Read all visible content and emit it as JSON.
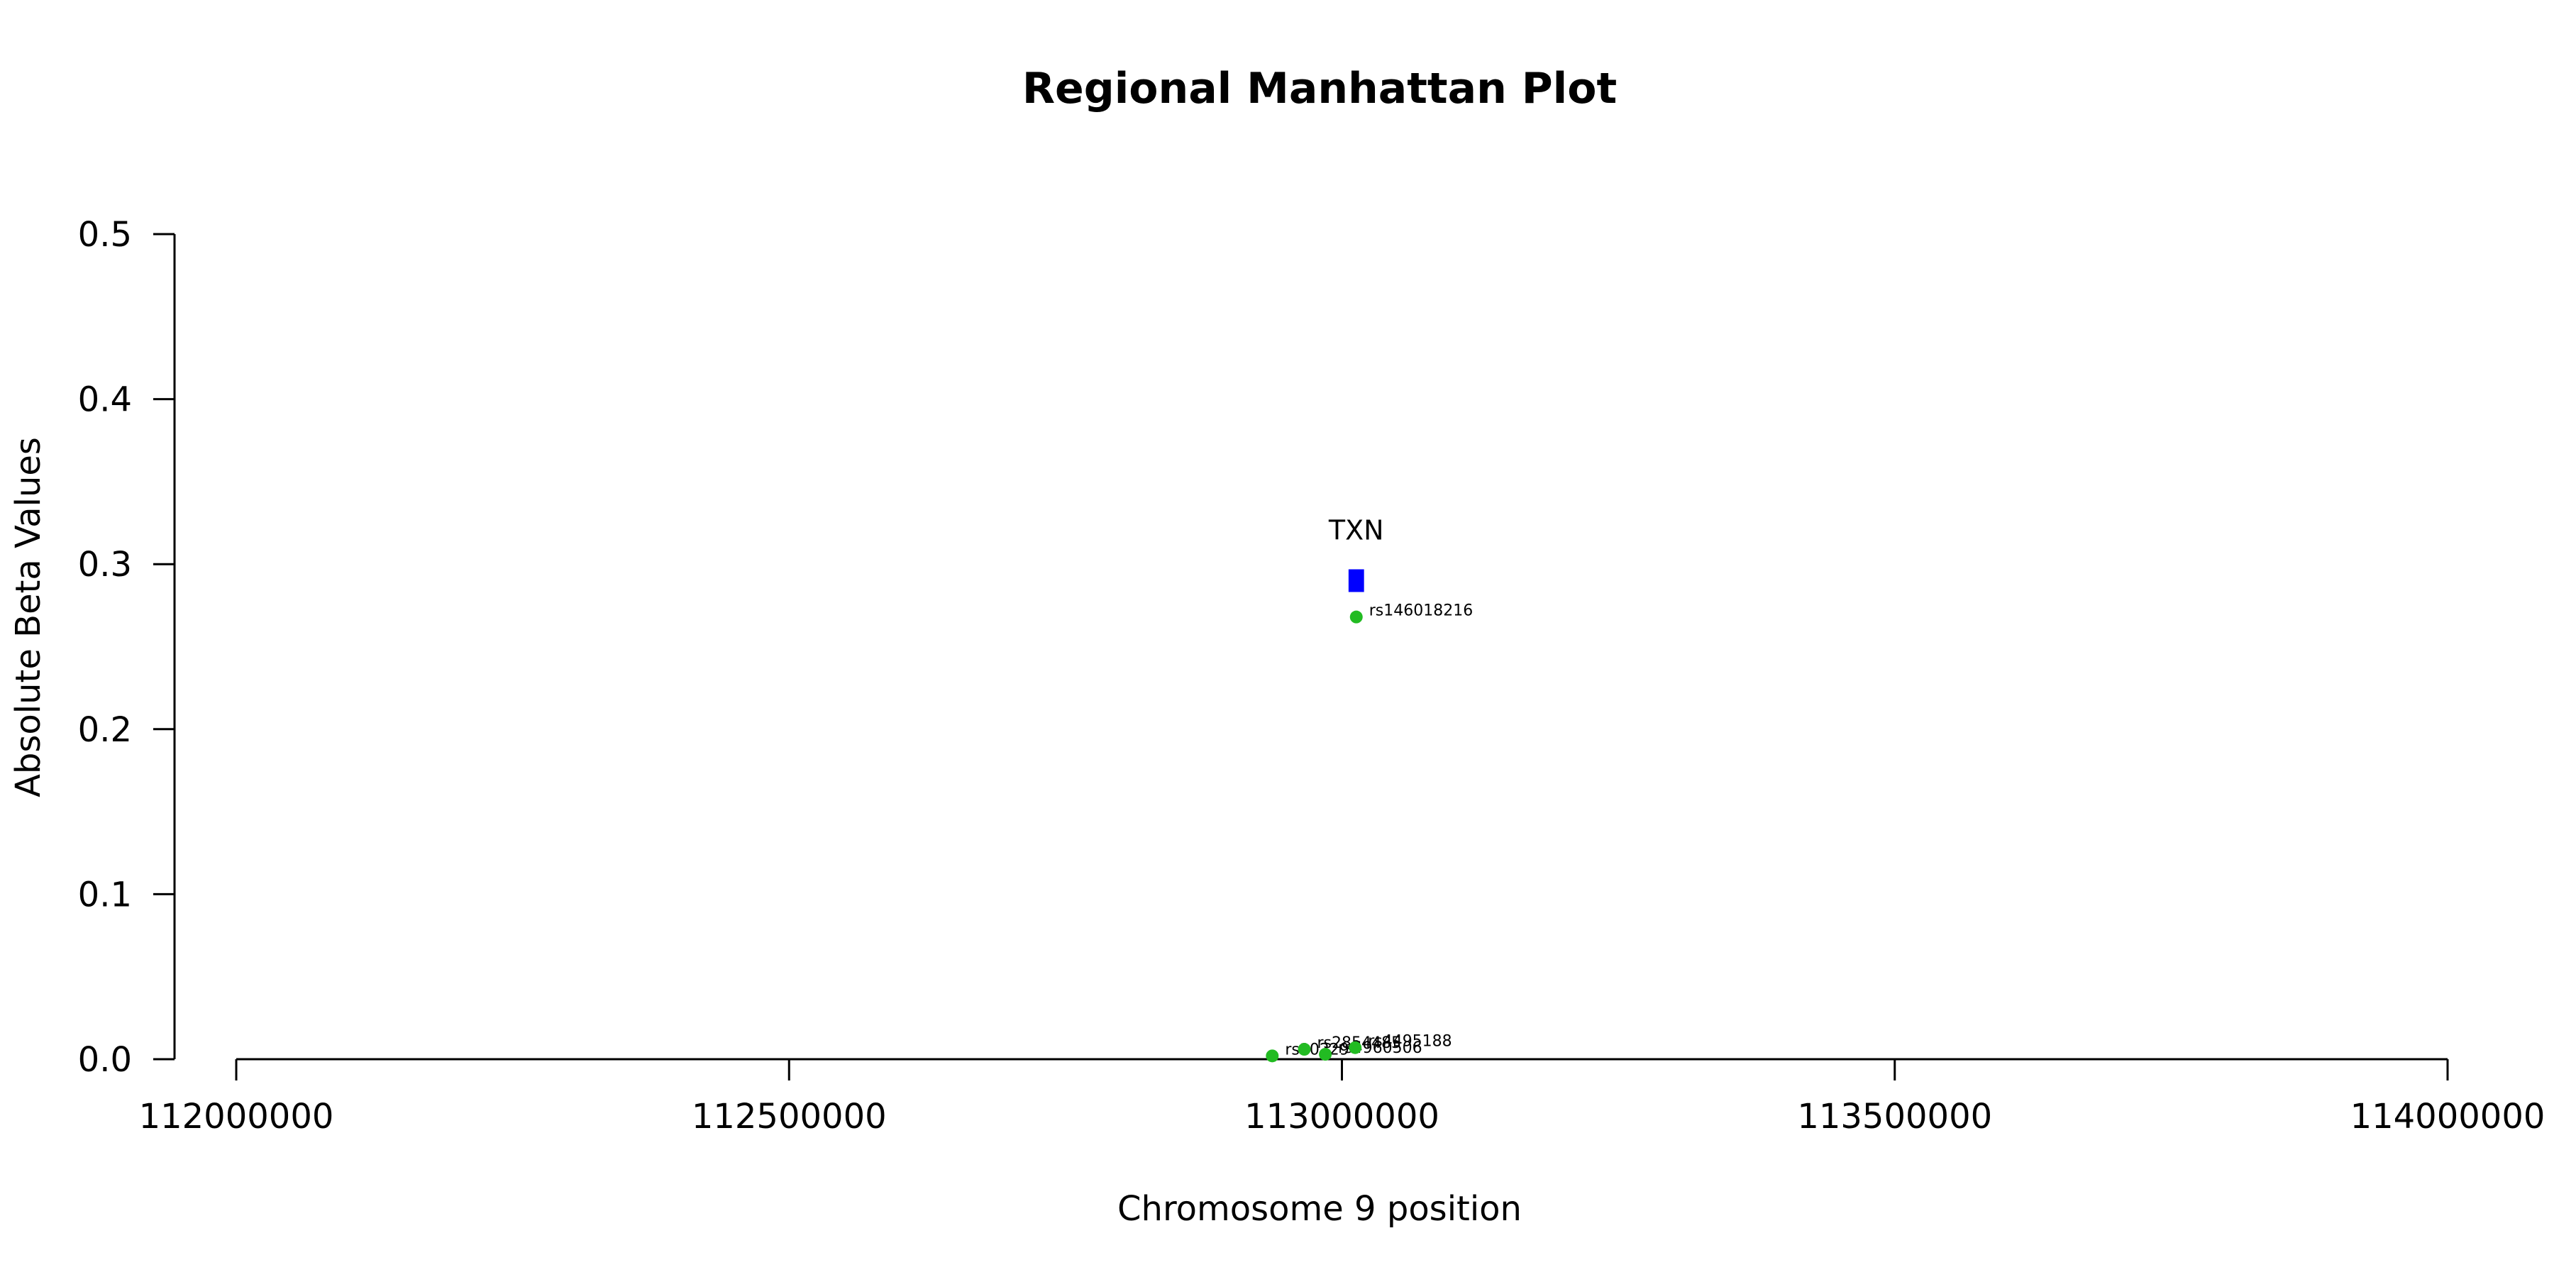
{
  "chart_data": {
    "type": "scatter",
    "title": "Regional Manhattan Plot",
    "xlabel": "Chromosome 9 position",
    "ylabel": "Absolute Beta Values",
    "xlim": [
      112000000,
      114000000
    ],
    "ylim": [
      0,
      0.5
    ],
    "x_ticks": [
      112000000,
      112500000,
      113000000,
      113500000,
      114000000
    ],
    "y_ticks": [
      0.0,
      0.1,
      0.2,
      0.3,
      0.4,
      0.5
    ],
    "x_tick_labels": [
      "112000000",
      "112500000",
      "113000000",
      "113500000",
      "114000000"
    ],
    "y_tick_labels": [
      "0.0",
      "0.1",
      "0.2",
      "0.3",
      "0.4",
      "0.5"
    ],
    "grid": false,
    "point_color": "#22bb22",
    "gene_color": "#0000ff",
    "genes": [
      {
        "name": "TXN",
        "start": 113006000,
        "end": 113020000,
        "y": 0.29
      }
    ],
    "points": [
      {
        "x": 113013000,
        "y": 0.268,
        "label": "rs146018216"
      },
      {
        "x": 112937000,
        "y": 0.002,
        "label": "rs10229"
      },
      {
        "x": 112966000,
        "y": 0.006,
        "label": "rs2854485"
      },
      {
        "x": 112985000,
        "y": 0.003,
        "label": "rs4960506"
      },
      {
        "x": 113012000,
        "y": 0.007,
        "label": "rs4495188"
      }
    ]
  }
}
